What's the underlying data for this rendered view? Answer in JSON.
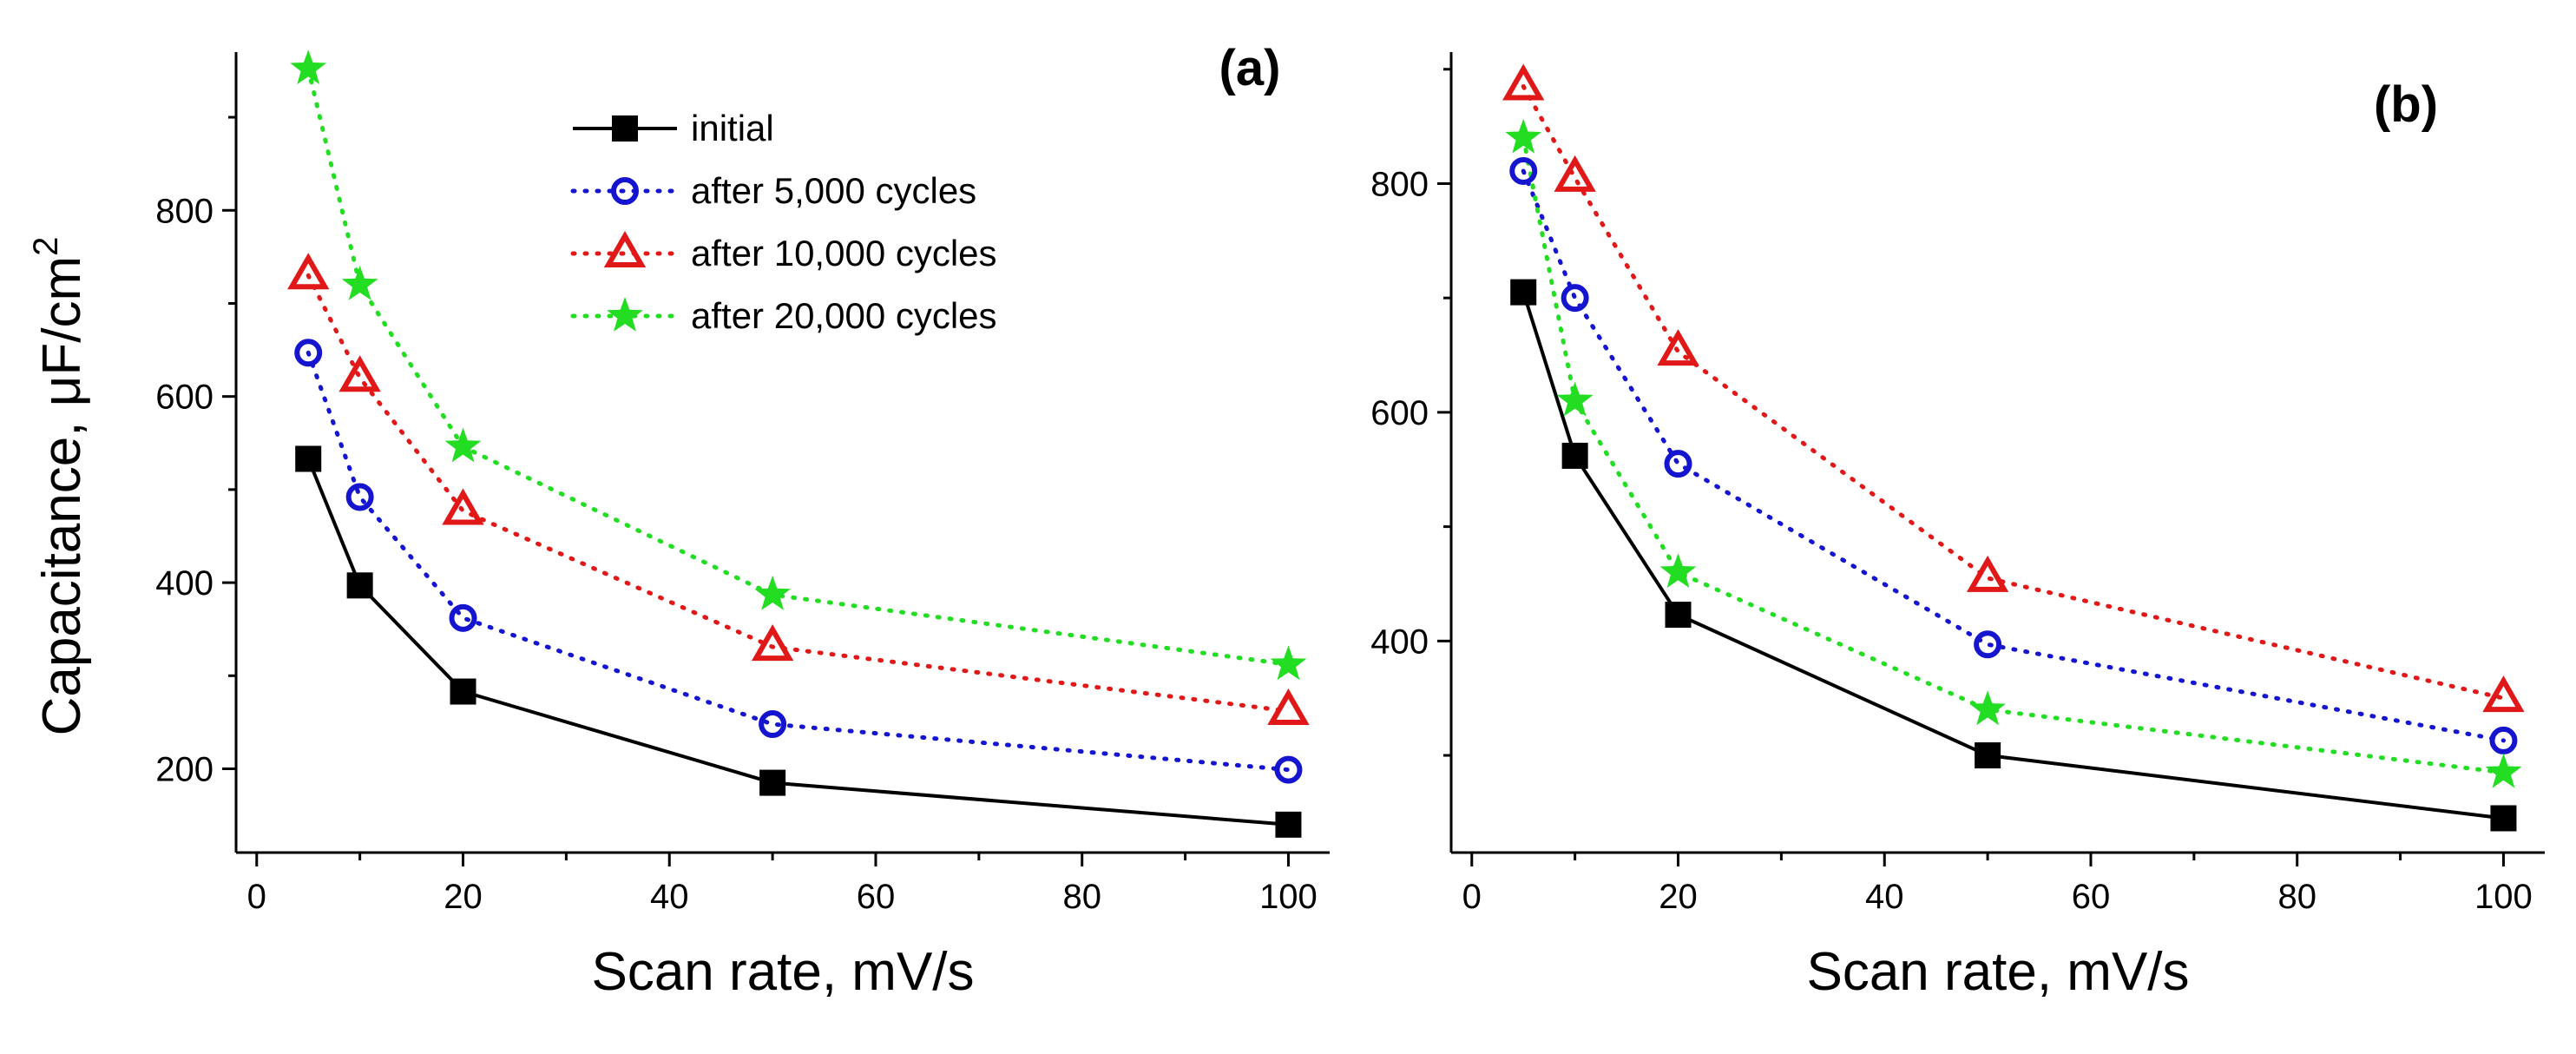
{
  "chart_data": [
    {
      "type": "line",
      "panel_label": "(a)",
      "xlabel": "Scan rate, mV/s",
      "ylabel_main": "Capacitance, μF/cm",
      "ylabel_sup": "2",
      "xlim": [
        -2,
        104
      ],
      "ylim": [
        110,
        970
      ],
      "xticks": [
        0,
        20,
        40,
        60,
        80,
        100
      ],
      "yticks": [
        200,
        400,
        600,
        800
      ],
      "x": [
        5,
        10,
        20,
        50,
        100
      ],
      "series": [
        {
          "name": "initial",
          "color": "#000000",
          "marker": "square",
          "line": "solid",
          "values": [
            533,
            397,
            283,
            185,
            140
          ]
        },
        {
          "name": "after 5,000 cycles",
          "color": "#1515d0",
          "marker": "circle",
          "line": "dotted",
          "values": [
            647,
            492,
            362,
            248,
            199
          ]
        },
        {
          "name": "after 10,000 cycles",
          "color": "#e01818",
          "marker": "triangle",
          "line": "dotted",
          "values": [
            730,
            620,
            477,
            331,
            262
          ]
        },
        {
          "name": "after 20,000 cycles",
          "color": "#22dd22",
          "marker": "star",
          "line": "dotted",
          "values": [
            952,
            720,
            546,
            387,
            312
          ]
        }
      ],
      "legend": {
        "position": "top-center",
        "entries": [
          "initial",
          "after 5,000 cycles",
          "after 10,000 cycles",
          "after 20,000 cycles"
        ]
      }
    },
    {
      "type": "line",
      "panel_label": "(b)",
      "xlabel": "Scan rate, mV/s",
      "xlim": [
        -2,
        104
      ],
      "ylim": [
        215,
        915
      ],
      "xticks": [
        0,
        20,
        40,
        60,
        80,
        100
      ],
      "yticks": [
        400,
        600,
        800
      ],
      "x": [
        5,
        10,
        20,
        50,
        100
      ],
      "series": [
        {
          "name": "initial",
          "color": "#000000",
          "marker": "square",
          "line": "solid",
          "values": [
            705,
            562,
            423,
            300,
            245
          ]
        },
        {
          "name": "after 5,000 cycles",
          "color": "#1515d0",
          "marker": "circle",
          "line": "dotted",
          "values": [
            811,
            700,
            555,
            397,
            313
          ]
        },
        {
          "name": "after 10,000 cycles",
          "color": "#e01818",
          "marker": "triangle",
          "line": "dotted",
          "values": [
            885,
            805,
            653,
            455,
            350
          ]
        },
        {
          "name": "after 20,000 cycles",
          "color": "#22dd22",
          "marker": "star",
          "line": "dotted",
          "values": [
            840,
            610,
            460,
            340,
            285
          ]
        }
      ]
    }
  ]
}
